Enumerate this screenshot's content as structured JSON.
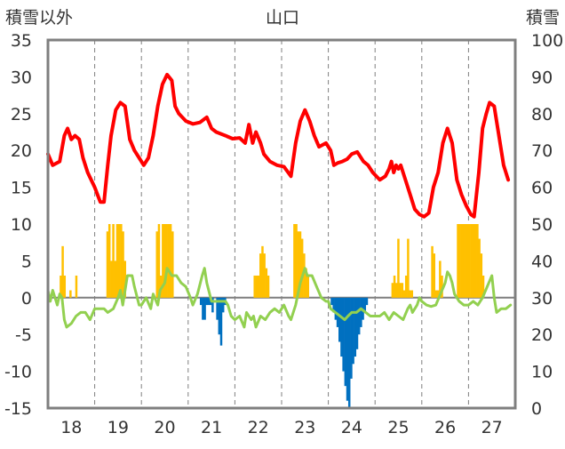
{
  "chart_data": {
    "type": "bar+line",
    "title": "山口",
    "left_axis_label": "積雪以外",
    "right_axis_label": "積雪",
    "x_tick_labels": [
      "18",
      "19",
      "20",
      "21",
      "22",
      "23",
      "24",
      "25",
      "26",
      "27"
    ],
    "ylim_left": [
      -15,
      35
    ],
    "ylim_right": [
      0,
      100
    ],
    "y_ticks_left": [
      "-15",
      "-10",
      "-5",
      "0",
      "5",
      "10",
      "15",
      "20",
      "25",
      "30",
      "35"
    ],
    "y_ticks_right": [
      "0",
      "10",
      "20",
      "30",
      "40",
      "50",
      "60",
      "70",
      "80",
      "90",
      "100"
    ],
    "grid": "vertical-dashed",
    "colors": {
      "positive_bars": "#ffc000",
      "negative_bars": "#0070c0",
      "red_line": "#ff0000",
      "green_line": "#92d050",
      "frame": "#7f7f7f",
      "grid": "#7f7f7f"
    },
    "series": [
      {
        "type": "bar",
        "axis": "left",
        "segments": [
          {
            "start": 17.75,
            "step": 0.0417,
            "values": [
              3,
              7,
              3,
              0,
              0,
              1,
              0,
              0,
              3
            ]
          },
          {
            "start": 18.75,
            "step": 0.0417,
            "values": [
              9,
              10,
              5,
              10,
              5,
              10,
              10,
              10,
              9,
              5
            ]
          },
          {
            "start": 19.81,
            "step": 0.0417,
            "values": [
              9,
              10,
              3,
              10,
              10,
              10,
              10,
              10,
              9
            ]
          },
          {
            "start": 20.75,
            "step": 0.0417,
            "values": [
              -1,
              -3,
              -3,
              -1,
              -1,
              -1,
              -2
            ]
          },
          {
            "start": 21.1,
            "step": 0.0417,
            "values": [
              -3,
              -5,
              -6.5,
              -2,
              -1
            ]
          },
          {
            "start": 21.9,
            "step": 0.0417,
            "values": [
              3,
              3,
              3,
              6,
              7,
              6,
              4,
              3
            ]
          },
          {
            "start": 22.75,
            "step": 0.0417,
            "values": [
              10,
              10,
              9,
              9,
              8,
              6,
              4,
              3
            ]
          },
          {
            "start": 23.55,
            "step": 0.0417,
            "values": [
              -1,
              -2,
              -3,
              -4,
              -6,
              -8,
              -10,
              -12,
              -14,
              -15,
              -11,
              -9,
              -8,
              -7,
              -5,
              -4,
              -3,
              -2,
              -1
            ]
          },
          {
            "start": 24.85,
            "step": 0.0417,
            "values": [
              2,
              3,
              2,
              8,
              2,
              2,
              1,
              3,
              8,
              1,
              1
            ]
          },
          {
            "start": 25.7,
            "step": 0.0417,
            "values": [
              7,
              6,
              1,
              1,
              5,
              3
            ]
          },
          {
            "start": 26.25,
            "step": 0.0417,
            "values": [
              10,
              10,
              10,
              10,
              10,
              10,
              10,
              10,
              10,
              10,
              10,
              8,
              6,
              3
            ]
          }
        ]
      },
      {
        "type": "line",
        "axis": "left",
        "color": "red",
        "points": [
          [
            17.5,
            19.5
          ],
          [
            17.6,
            18
          ],
          [
            17.75,
            18.5
          ],
          [
            17.85,
            22
          ],
          [
            17.92,
            23
          ],
          [
            18.0,
            21.5
          ],
          [
            18.08,
            22
          ],
          [
            18.17,
            21.5
          ],
          [
            18.25,
            19
          ],
          [
            18.35,
            17
          ],
          [
            18.5,
            15
          ],
          [
            18.62,
            13
          ],
          [
            18.7,
            13
          ],
          [
            18.78,
            18
          ],
          [
            18.85,
            22
          ],
          [
            18.95,
            25.5
          ],
          [
            19.05,
            26.5
          ],
          [
            19.15,
            26
          ],
          [
            19.25,
            21.5
          ],
          [
            19.35,
            20
          ],
          [
            19.45,
            19
          ],
          [
            19.55,
            18
          ],
          [
            19.65,
            19
          ],
          [
            19.75,
            22
          ],
          [
            19.85,
            26
          ],
          [
            19.95,
            29
          ],
          [
            20.05,
            30.3
          ],
          [
            20.15,
            29.5
          ],
          [
            20.22,
            26
          ],
          [
            20.3,
            25
          ],
          [
            20.45,
            24
          ],
          [
            20.6,
            23.6
          ],
          [
            20.75,
            23.8
          ],
          [
            20.9,
            24.5
          ],
          [
            21.0,
            23
          ],
          [
            21.1,
            22.5
          ],
          [
            21.3,
            22
          ],
          [
            21.45,
            21.6
          ],
          [
            21.6,
            21.7
          ],
          [
            21.72,
            21
          ],
          [
            21.8,
            23.5
          ],
          [
            21.88,
            21
          ],
          [
            21.95,
            22.5
          ],
          [
            22.05,
            21
          ],
          [
            22.12,
            19.5
          ],
          [
            22.25,
            18.5
          ],
          [
            22.4,
            18
          ],
          [
            22.55,
            17.8
          ],
          [
            22.7,
            16.5
          ],
          [
            22.8,
            21
          ],
          [
            22.9,
            24
          ],
          [
            23.0,
            25.5
          ],
          [
            23.1,
            24
          ],
          [
            23.2,
            22
          ],
          [
            23.3,
            20.5
          ],
          [
            23.45,
            21
          ],
          [
            23.55,
            20
          ],
          [
            23.62,
            18
          ],
          [
            23.7,
            18.3
          ],
          [
            23.8,
            18.5
          ],
          [
            23.9,
            18.8
          ],
          [
            24.0,
            19.5
          ],
          [
            24.12,
            19.8
          ],
          [
            24.25,
            18.5
          ],
          [
            24.35,
            18
          ],
          [
            24.45,
            17
          ],
          [
            24.6,
            16
          ],
          [
            24.72,
            16.5
          ],
          [
            24.8,
            17.5
          ],
          [
            24.85,
            18.5
          ],
          [
            24.9,
            17
          ],
          [
            24.95,
            18
          ],
          [
            25.0,
            17.5
          ],
          [
            25.05,
            18
          ],
          [
            25.15,
            16
          ],
          [
            25.25,
            14
          ],
          [
            25.35,
            12
          ],
          [
            25.45,
            11.3
          ],
          [
            25.55,
            11
          ],
          [
            25.65,
            11.5
          ],
          [
            25.75,
            15
          ],
          [
            25.85,
            17
          ],
          [
            25.95,
            21
          ],
          [
            26.05,
            23
          ],
          [
            26.15,
            21
          ],
          [
            26.25,
            16
          ],
          [
            26.35,
            14
          ],
          [
            26.45,
            12.5
          ],
          [
            26.55,
            11.3
          ],
          [
            26.62,
            11
          ],
          [
            26.72,
            17
          ],
          [
            26.8,
            23
          ],
          [
            26.88,
            25
          ],
          [
            26.95,
            26.5
          ],
          [
            27.05,
            26
          ],
          [
            27.15,
            22
          ],
          [
            27.25,
            18
          ],
          [
            27.35,
            16
          ]
        ]
      },
      {
        "type": "line",
        "axis": "left",
        "color": "green",
        "points": [
          [
            17.5,
            1
          ],
          [
            17.55,
            -0.5
          ],
          [
            17.6,
            1
          ],
          [
            17.65,
            0
          ],
          [
            17.7,
            -1
          ],
          [
            17.75,
            0.5
          ],
          [
            17.8,
            0
          ],
          [
            17.85,
            -3
          ],
          [
            17.9,
            -4
          ],
          [
            18.0,
            -3.5
          ],
          [
            18.1,
            -2.5
          ],
          [
            18.2,
            -2
          ],
          [
            18.3,
            -2
          ],
          [
            18.4,
            -3
          ],
          [
            18.5,
            -1.5
          ],
          [
            18.6,
            -1.5
          ],
          [
            18.7,
            -1.5
          ],
          [
            18.78,
            -2
          ],
          [
            18.9,
            -1.5
          ],
          [
            19.0,
            0
          ],
          [
            19.05,
            1
          ],
          [
            19.1,
            -1
          ],
          [
            19.15,
            1
          ],
          [
            19.2,
            3
          ],
          [
            19.3,
            3
          ],
          [
            19.35,
            1.5
          ],
          [
            19.45,
            -1
          ],
          [
            19.5,
            -1
          ],
          [
            19.55,
            -0.5
          ],
          [
            19.6,
            0
          ],
          [
            19.7,
            -1.5
          ],
          [
            19.75,
            0.5
          ],
          [
            19.85,
            -1
          ],
          [
            19.9,
            1
          ],
          [
            20.0,
            2
          ],
          [
            20.05,
            4
          ],
          [
            20.1,
            3.5
          ],
          [
            20.15,
            3
          ],
          [
            20.25,
            3
          ],
          [
            20.35,
            2
          ],
          [
            20.45,
            1.5
          ],
          [
            20.55,
            0
          ],
          [
            20.6,
            -1
          ],
          [
            20.7,
            0.5
          ],
          [
            20.8,
            3
          ],
          [
            20.85,
            4
          ],
          [
            20.9,
            2
          ],
          [
            21.0,
            -0.5
          ],
          [
            21.1,
            -0.5
          ],
          [
            21.2,
            -0.5
          ],
          [
            21.3,
            -0.5
          ],
          [
            21.35,
            -1
          ],
          [
            21.42,
            -2.5
          ],
          [
            21.5,
            -3
          ],
          [
            21.6,
            -2.5
          ],
          [
            21.7,
            -4
          ],
          [
            21.75,
            -2
          ],
          [
            21.85,
            -3
          ],
          [
            21.9,
            -2.5
          ],
          [
            21.95,
            -4
          ],
          [
            22.05,
            -2.5
          ],
          [
            22.15,
            -3
          ],
          [
            22.25,
            -2
          ],
          [
            22.35,
            -1.5
          ],
          [
            22.45,
            -2
          ],
          [
            22.55,
            -1
          ],
          [
            22.65,
            -2.5
          ],
          [
            22.7,
            -3
          ],
          [
            22.8,
            -1
          ],
          [
            22.9,
            2
          ],
          [
            23.0,
            4
          ],
          [
            23.05,
            3
          ],
          [
            23.15,
            3
          ],
          [
            23.25,
            1.5
          ],
          [
            23.35,
            0
          ],
          [
            23.45,
            -0.5
          ],
          [
            23.5,
            -0.5
          ],
          [
            23.55,
            -1.5
          ],
          [
            23.65,
            -2
          ],
          [
            23.75,
            -2.5
          ],
          [
            23.85,
            -3
          ],
          [
            23.92,
            -2.5
          ],
          [
            24.0,
            -2
          ],
          [
            24.1,
            -2
          ],
          [
            24.2,
            -1.5
          ],
          [
            24.3,
            -2
          ],
          [
            24.4,
            -2.5
          ],
          [
            24.5,
            -2.5
          ],
          [
            24.6,
            -2.5
          ],
          [
            24.7,
            -2
          ],
          [
            24.8,
            -3
          ],
          [
            24.9,
            -2
          ],
          [
            25.0,
            -2.5
          ],
          [
            25.1,
            -3
          ],
          [
            25.2,
            -1.5
          ],
          [
            25.25,
            -1
          ],
          [
            25.3,
            -2
          ],
          [
            25.4,
            -1
          ],
          [
            25.45,
            0
          ],
          [
            25.5,
            -0.5
          ],
          [
            25.6,
            -1
          ],
          [
            25.7,
            -1.2
          ],
          [
            25.8,
            -1
          ],
          [
            25.9,
            0.5
          ],
          [
            26.0,
            2
          ],
          [
            26.05,
            3.5
          ],
          [
            26.1,
            3
          ],
          [
            26.15,
            2
          ],
          [
            26.2,
            0.5
          ],
          [
            26.3,
            -0.5
          ],
          [
            26.4,
            -1
          ],
          [
            26.5,
            -1
          ],
          [
            26.6,
            -0.5
          ],
          [
            26.7,
            -1
          ],
          [
            26.8,
            0
          ],
          [
            26.9,
            1.5
          ],
          [
            27.0,
            3
          ],
          [
            27.05,
            0
          ],
          [
            27.1,
            -2
          ],
          [
            27.2,
            -1.5
          ],
          [
            27.3,
            -1.5
          ],
          [
            27.4,
            -1
          ]
        ]
      }
    ]
  }
}
